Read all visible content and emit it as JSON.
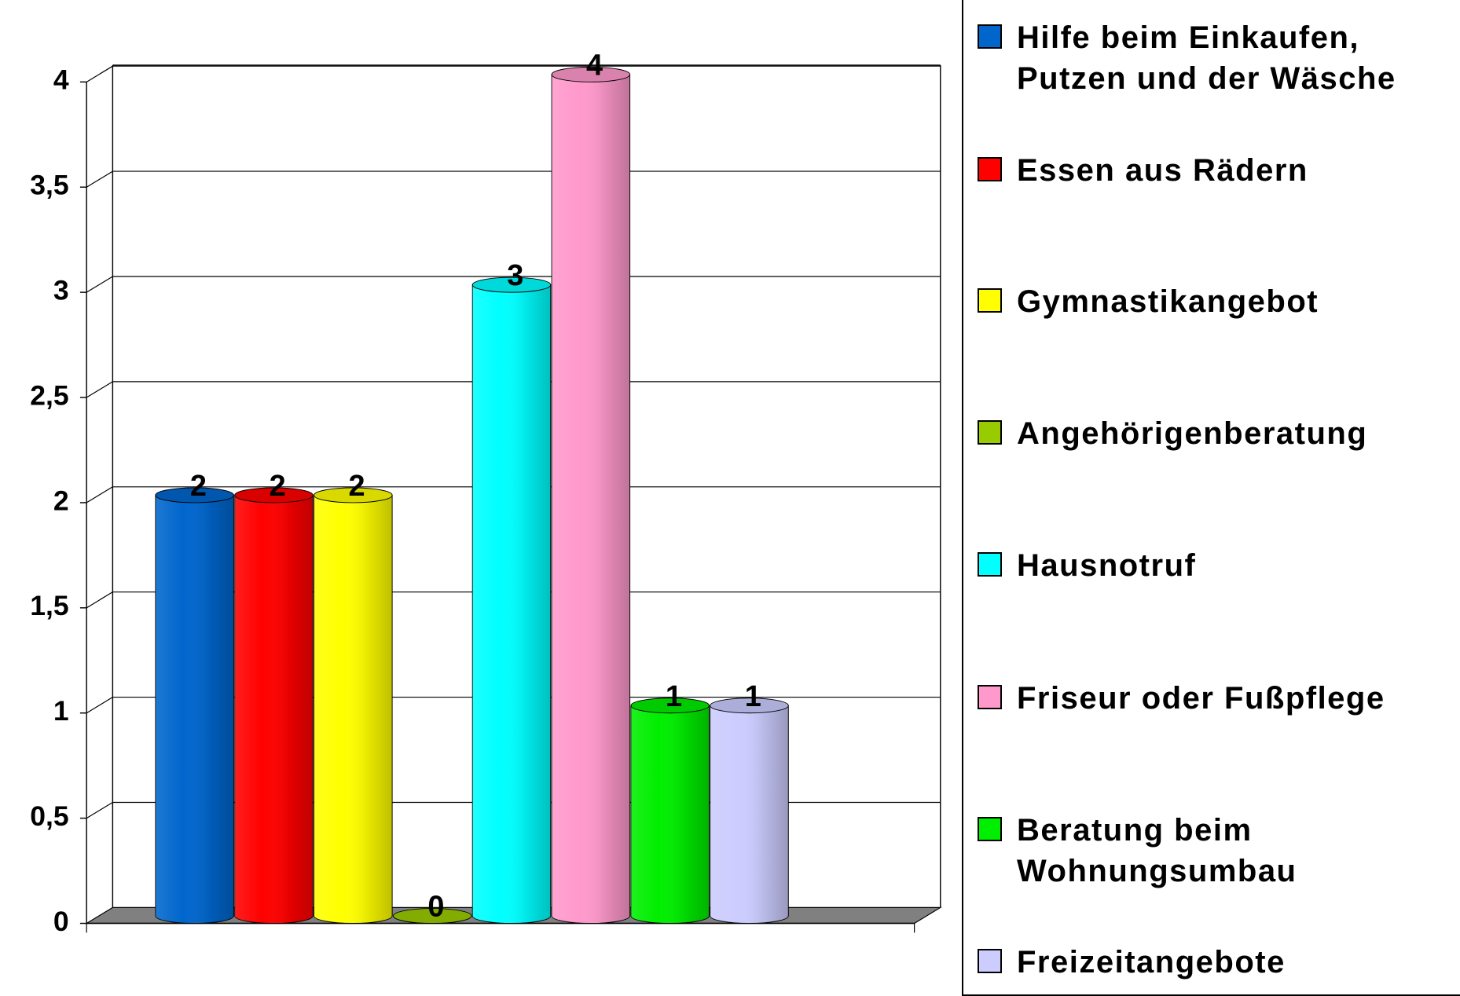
{
  "chart_data": {
    "type": "bar",
    "series": [
      {
        "name": "Hilfe beim Einkaufen, Putzen und der Wäsche",
        "color": "#0066cc",
        "values": [
          2
        ]
      },
      {
        "name": "Essen aus Rädern",
        "color": "#ff0000",
        "values": [
          2
        ]
      },
      {
        "name": "Gymnastikangebot",
        "color": "#ffff00",
        "values": [
          2
        ]
      },
      {
        "name": "Angehörigenberatung",
        "color": "#99cc00",
        "values": [
          0
        ]
      },
      {
        "name": "Hausnotruf",
        "color": "#00ffff",
        "values": [
          3
        ]
      },
      {
        "name": "Friseur oder Fußpflege",
        "color": "#ff99cc",
        "values": [
          4
        ]
      },
      {
        "name": "Beratung beim Wohnungsumbau",
        "color": "#00ee00",
        "values": [
          1
        ]
      },
      {
        "name": "Freizeitangebote",
        "color": "#ccccff",
        "values": [
          1
        ]
      }
    ],
    "ylim": [
      0,
      4
    ],
    "yticks": [
      0,
      {
        "value": 0.5,
        "label": "0,5"
      },
      1,
      {
        "value": 1.5,
        "label": "1,5"
      },
      2,
      {
        "value": 2.5,
        "label": "2,5"
      },
      3,
      {
        "value": 3.5,
        "label": "3,5"
      },
      4
    ],
    "grid": true,
    "legend": "right"
  }
}
